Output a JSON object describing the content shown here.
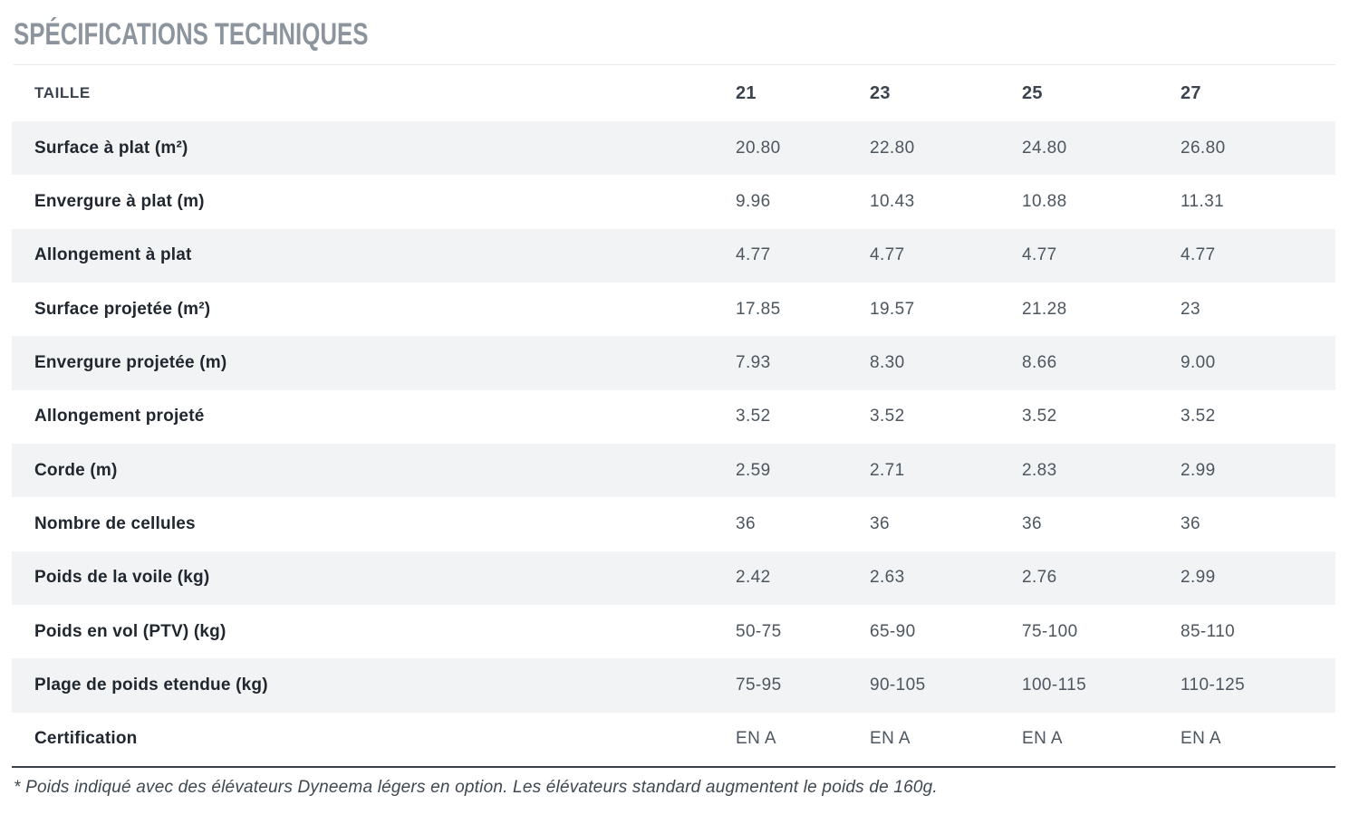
{
  "section": {
    "title": "SPÉCIFICATIONS TECHNIQUES",
    "footnote": "* Poids indiqué avec des élévateurs Dyneema légers en option. Les élévateurs standard augmentent le poids de 160g."
  },
  "table": {
    "size_label": "TAILLE",
    "sizes": [
      "21",
      "23",
      "25",
      "27"
    ],
    "rows": [
      {
        "label": "Surface à plat (m²)",
        "values": [
          "20.80",
          "22.80",
          "24.80",
          "26.80"
        ]
      },
      {
        "label": "Envergure à plat (m)",
        "values": [
          "9.96",
          "10.43",
          "10.88",
          "11.31"
        ]
      },
      {
        "label": "Allongement à plat",
        "values": [
          "4.77",
          "4.77",
          "4.77",
          "4.77"
        ]
      },
      {
        "label": "Surface projetée (m²)",
        "values": [
          "17.85",
          "19.57",
          "21.28",
          "23"
        ]
      },
      {
        "label": "Envergure projetée (m)",
        "values": [
          "7.93",
          "8.30",
          "8.66",
          "9.00"
        ]
      },
      {
        "label": "Allongement projeté",
        "values": [
          "3.52",
          "3.52",
          "3.52",
          "3.52"
        ]
      },
      {
        "label": "Corde (m)",
        "values": [
          "2.59",
          "2.71",
          "2.83",
          "2.99"
        ]
      },
      {
        "label": "Nombre de cellules",
        "values": [
          "36",
          "36",
          "36",
          "36"
        ]
      },
      {
        "label": "Poids de la voile (kg)",
        "values": [
          "2.42",
          "2.63",
          "2.76",
          "2.99"
        ]
      },
      {
        "label": "Poids en vol (PTV) (kg)",
        "values": [
          "50-75",
          "65-90",
          "75-100",
          "85-110"
        ]
      },
      {
        "label": "Plage de poids etendue (kg)",
        "values": [
          "75-95",
          "90-105",
          "100-115",
          "110-125"
        ]
      },
      {
        "label": "Certification",
        "values": [
          "EN A",
          "EN A",
          "EN A",
          "EN A"
        ]
      }
    ]
  },
  "colors": {
    "title": "#8C959D",
    "header_text": "#3B444E",
    "row_label": "#21272F",
    "value_text": "#4D565F",
    "stripe": "#F1F3F5",
    "top_divider": "#E8EBED",
    "bottom_rule": "#3A4149"
  }
}
